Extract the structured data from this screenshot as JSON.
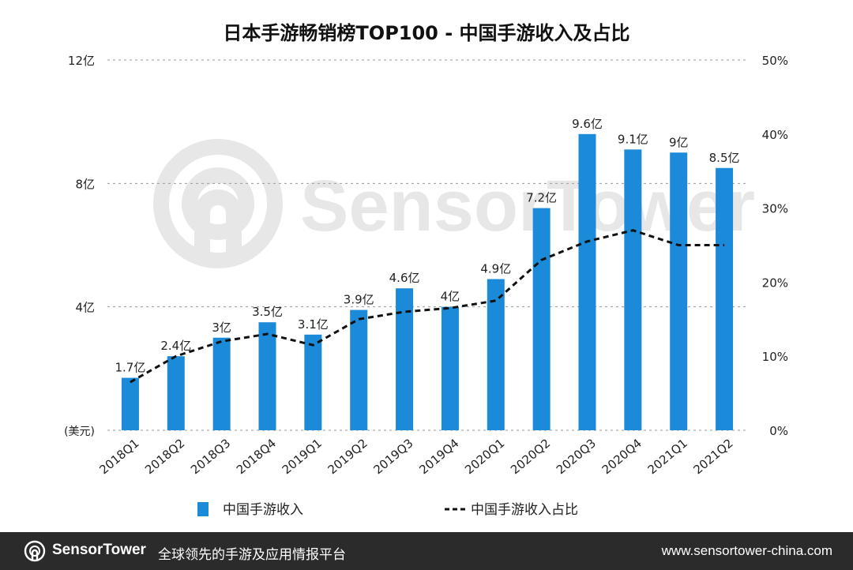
{
  "chart_data": {
    "type": "bar",
    "title": "日本手游畅销榜TOP100 - 中国手游收入及占比",
    "categories": [
      "2018Q1",
      "2018Q2",
      "2018Q3",
      "2018Q4",
      "2019Q1",
      "2019Q2",
      "2019Q3",
      "2019Q4",
      "2020Q1",
      "2020Q2",
      "2020Q3",
      "2020Q4",
      "2021Q1",
      "2021Q2"
    ],
    "series": [
      {
        "name": "中国手游收入",
        "kind": "bar",
        "color": "#1b8ad8",
        "values": [
          1.7,
          2.4,
          3,
          3.5,
          3.1,
          3.9,
          4.6,
          4,
          4.9,
          7.2,
          9.6,
          9.1,
          9,
          8.5
        ],
        "data_labels": [
          "1.7亿",
          "2.4亿",
          "3亿",
          "3.5亿",
          "3.1亿",
          "3.9亿",
          "4.6亿",
          "4亿",
          "4.9亿",
          "7.2亿",
          "9.6亿",
          "9.1亿",
          "9亿",
          "8.5亿"
        ]
      },
      {
        "name": "中国手游收入占比",
        "kind": "line",
        "style": "dashed",
        "color": "#111111",
        "values": [
          6.5,
          10,
          12,
          13,
          11.5,
          15,
          16,
          16.5,
          17.5,
          23,
          25.5,
          27,
          25,
          25
        ]
      }
    ],
    "y_left": {
      "unit_label": "(美元)",
      "ylim": [
        0,
        12
      ],
      "ticks": [
        {
          "v": 4,
          "label": "4亿"
        },
        {
          "v": 8,
          "label": "8亿"
        },
        {
          "v": 12,
          "label": "12亿"
        }
      ]
    },
    "y_right": {
      "ylim": [
        0,
        50
      ],
      "ticks": [
        {
          "v": 0,
          "label": "0%"
        },
        {
          "v": 10,
          "label": "10%"
        },
        {
          "v": 20,
          "label": "20%"
        },
        {
          "v": 30,
          "label": "30%"
        },
        {
          "v": 40,
          "label": "40%"
        },
        {
          "v": 50,
          "label": "50%"
        }
      ]
    },
    "grid": true,
    "legend_position": "bottom"
  },
  "watermark": {
    "text": "SensorTower"
  },
  "footer": {
    "brand": "SensorTower",
    "tagline": "全球领先的手游及应用情报平台",
    "url": "www.sensortower-china.com",
    "background": "#2b2b2b",
    "logo_icon": "sensortower-logo-icon"
  }
}
